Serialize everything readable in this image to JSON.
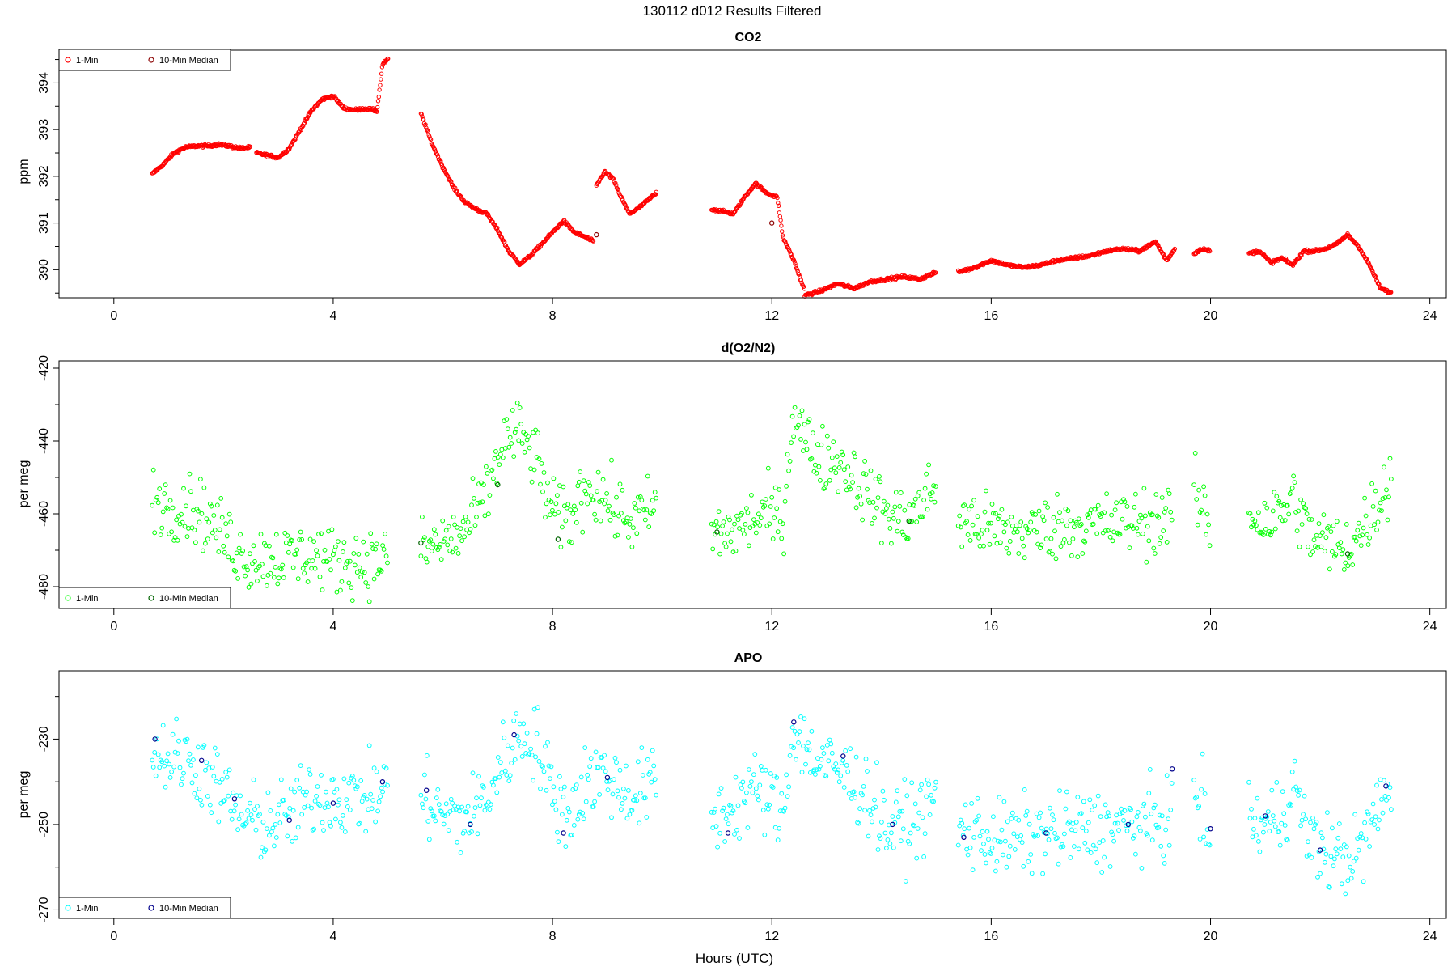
{
  "title": "130112   d012   Results Filtered",
  "xlabel": "Hours (UTC)",
  "chart_data": [
    {
      "type": "scatter",
      "title": "CO2",
      "ylabel": "ppm",
      "xlim": [
        -1,
        24.3
      ],
      "ylim": [
        389.4,
        394.7
      ],
      "xticks": [
        0,
        4,
        8,
        12,
        16,
        20,
        24
      ],
      "yticks": [
        390,
        391,
        392,
        393,
        394
      ],
      "legend": {
        "position": "top-left",
        "entries": [
          "1-Min",
          "10-Min Median"
        ]
      },
      "colors": {
        "one_min": "#ff0000",
        "median": "#8b0000"
      },
      "series": [
        {
          "name": "1-Min",
          "segments": [
            {
              "x": [
                0.7,
                0.9,
                1.1,
                1.3,
                1.5,
                1.7,
                1.9,
                2.1,
                2.3,
                2.5
              ],
              "y": [
                392.05,
                392.25,
                392.5,
                392.62,
                392.65,
                392.65,
                392.68,
                392.65,
                392.6,
                392.62
              ]
            },
            {
              "x": [
                2.6,
                2.8,
                3.0,
                3.2,
                3.4,
                3.6,
                3.8,
                4.0,
                4.2,
                4.4,
                4.6,
                4.8,
                4.9,
                5.0
              ],
              "y": [
                392.5,
                392.45,
                392.4,
                392.6,
                393.0,
                393.4,
                393.65,
                393.72,
                393.45,
                393.42,
                393.45,
                393.4,
                394.4,
                394.5
              ]
            },
            {
              "x": [
                5.6,
                5.8,
                6.0,
                6.2,
                6.4,
                6.6,
                6.8,
                7.0,
                7.2,
                7.4,
                7.6,
                7.8,
                8.0,
                8.2,
                8.4,
                8.6,
                8.75
              ],
              "y": [
                393.35,
                392.7,
                392.2,
                391.75,
                391.45,
                391.3,
                391.2,
                390.85,
                390.4,
                390.12,
                390.3,
                390.55,
                390.8,
                391.05,
                390.8,
                390.7,
                390.6
              ]
            },
            {
              "x": [
                8.8,
                8.95,
                9.1,
                9.25,
                9.4,
                9.55,
                9.9
              ],
              "y": [
                391.8,
                392.1,
                391.95,
                391.55,
                391.2,
                391.3,
                391.65
              ]
            },
            {
              "x": [
                10.9,
                11.1,
                11.3,
                11.5,
                11.7,
                11.9,
                12.1,
                12.2,
                12.4,
                12.6
              ],
              "y": [
                391.3,
                391.25,
                391.2,
                391.55,
                391.85,
                391.65,
                391.55,
                390.7,
                390.2,
                389.55
              ]
            },
            {
              "x": [
                12.6,
                12.9,
                13.2,
                13.5,
                13.8,
                14.1,
                14.4,
                14.7,
                15.0
              ],
              "y": [
                389.45,
                389.55,
                389.7,
                389.6,
                389.75,
                389.8,
                389.85,
                389.8,
                389.95
              ]
            },
            {
              "x": [
                15.4,
                15.7,
                16.0,
                16.3,
                16.6,
                16.9,
                17.2,
                17.5,
                17.8,
                18.1,
                18.4,
                18.7,
                19.0,
                19.2,
                19.35
              ],
              "y": [
                389.95,
                390.05,
                390.2,
                390.1,
                390.05,
                390.1,
                390.2,
                390.25,
                390.3,
                390.4,
                390.45,
                390.4,
                390.6,
                390.2,
                390.45
              ]
            },
            {
              "x": [
                19.7,
                19.85,
                20.0
              ],
              "y": [
                390.35,
                390.45,
                390.4
              ]
            },
            {
              "x": [
                20.7,
                20.9,
                21.1,
                21.3,
                21.5,
                21.7,
                21.9,
                22.1,
                22.3,
                22.5,
                22.7,
                22.9,
                23.1,
                23.3
              ],
              "y": [
                390.35,
                390.4,
                390.15,
                390.25,
                390.1,
                390.4,
                390.4,
                390.45,
                390.55,
                390.75,
                390.5,
                390.1,
                389.6,
                389.5
              ]
            }
          ]
        },
        {
          "name": "10-Min Median",
          "x": [
            8.8,
            12.0
          ],
          "y": [
            390.75,
            391.0
          ]
        }
      ]
    },
    {
      "type": "scatter",
      "title": "d(O2/N2)",
      "ylabel": "per meg",
      "xlim": [
        -1,
        24.3
      ],
      "ylim": [
        -486,
        -418
      ],
      "xticks": [
        0,
        4,
        8,
        12,
        16,
        20,
        24
      ],
      "yticks": [
        -480,
        -460,
        -440,
        -420
      ],
      "legend": {
        "position": "bottom-left",
        "entries": [
          "1-Min",
          "10-Min Median"
        ]
      },
      "colors": {
        "one_min": "#00ff00",
        "median": "#006400"
      },
      "series": [
        {
          "name": "1-Min",
          "segments": [
            {
              "x": [
                0.7,
                1.0,
                1.4,
                1.7,
                2.0,
                2.4,
                2.8,
                3.2,
                3.6,
                4.0,
                4.4,
                4.8,
                5.0
              ],
              "y": [
                -455,
                -458,
                -458,
                -461,
                -466,
                -472,
                -472,
                -472,
                -471,
                -473,
                -473,
                -473,
                -471
              ]
            },
            {
              "x": [
                5.6,
                6.0,
                6.4,
                6.8,
                7.1,
                7.4,
                7.7,
                8.0,
                8.3,
                8.6,
                8.9,
                9.2,
                9.5,
                9.9
              ],
              "y": [
                -470,
                -468,
                -465,
                -455,
                -440,
                -438,
                -445,
                -460,
                -462,
                -452,
                -455,
                -460,
                -462,
                -458
              ]
            },
            {
              "x": [
                10.9,
                11.3,
                11.6,
                11.9,
                12.2,
                12.4,
                12.6,
                12.9,
                13.2,
                13.5,
                13.8,
                14.1,
                14.4,
                14.7,
                15.0
              ],
              "y": [
                -465,
                -465,
                -462,
                -460,
                -462,
                -430,
                -440,
                -445,
                -445,
                -450,
                -455,
                -460,
                -462,
                -458,
                -452
              ]
            },
            {
              "x": [
                15.4,
                15.8,
                16.2,
                16.6,
                17.0,
                17.4,
                17.8,
                18.2,
                18.6,
                19.0,
                19.3
              ],
              "y": [
                -462,
                -463,
                -465,
                -465,
                -464,
                -463,
                -463,
                -463,
                -462,
                -462,
                -460
              ]
            },
            {
              "x": [
                19.7,
                19.9,
                20.0
              ],
              "y": [
                -455,
                -460,
                -465
              ]
            },
            {
              "x": [
                20.7,
                21.0,
                21.3,
                21.5,
                21.8,
                22.1,
                22.4,
                22.7,
                23.0,
                23.3
              ],
              "y": [
                -460,
                -462,
                -460,
                -455,
                -466,
                -468,
                -470,
                -466,
                -458,
                -450
              ]
            }
          ]
        },
        {
          "name": "10-Min Median",
          "x": [
            5.6,
            7.0,
            8.1,
            11.0,
            14.5,
            22.5
          ],
          "y": [
            -468,
            -452,
            -467,
            -465,
            -462,
            -471
          ]
        }
      ]
    },
    {
      "type": "scatter",
      "title": "APO",
      "ylabel": "per meg",
      "xlim": [
        -1,
        24.3
      ],
      "ylim": [
        -272,
        -214
      ],
      "xticks": [
        0,
        4,
        8,
        12,
        16,
        20,
        24
      ],
      "yticks": [
        -270,
        -250,
        -230
      ],
      "legend": {
        "position": "bottom-left",
        "entries": [
          "1-Min",
          "10-Min Median"
        ]
      },
      "colors": {
        "one_min": "#00ffff",
        "median": "#00008b"
      },
      "series": [
        {
          "name": "1-Min",
          "segments": [
            {
              "x": [
                0.7,
                1.0,
                1.4,
                1.7,
                2.0,
                2.4,
                2.8,
                3.2,
                3.6,
                4.0,
                4.4,
                4.8,
                5.0
              ],
              "y": [
                -233,
                -234,
                -235,
                -238,
                -243,
                -249,
                -250,
                -248,
                -244,
                -243,
                -244,
                -243,
                -240
              ]
            },
            {
              "x": [
                5.6,
                6.0,
                6.4,
                6.8,
                7.1,
                7.4,
                7.7,
                8.0,
                8.3,
                8.6,
                8.9,
                9.2,
                9.5,
                9.9
              ],
              "y": [
                -243,
                -248,
                -249,
                -244,
                -235,
                -229,
                -230,
                -243,
                -248,
                -240,
                -238,
                -241,
                -243,
                -240
              ]
            },
            {
              "x": [
                10.9,
                11.3,
                11.6,
                11.9,
                12.2,
                12.4,
                12.6,
                12.9,
                13.2,
                13.5,
                13.8,
                14.1,
                14.4,
                14.7,
                15.0
              ],
              "y": [
                -249,
                -246,
                -242,
                -243,
                -248,
                -226,
                -232,
                -236,
                -237,
                -240,
                -244,
                -251,
                -250,
                -248,
                -244
              ]
            },
            {
              "x": [
                15.4,
                15.8,
                16.2,
                16.6,
                17.0,
                17.4,
                17.8,
                18.2,
                18.6,
                19.0,
                19.3
              ],
              "y": [
                -251,
                -252,
                -254,
                -253,
                -252,
                -252,
                -251,
                -251,
                -250,
                -250,
                -248
              ]
            },
            {
              "x": [
                19.7,
                19.9,
                20.0
              ],
              "y": [
                -243,
                -248,
                -252
              ]
            },
            {
              "x": [
                20.7,
                21.0,
                21.3,
                21.5,
                21.8,
                22.1,
                22.4,
                22.7,
                23.0,
                23.3
              ],
              "y": [
                -250,
                -250,
                -248,
                -240,
                -254,
                -256,
                -258,
                -257,
                -248,
                -241
              ]
            }
          ]
        },
        {
          "name": "10-Min Median",
          "x": [
            0.75,
            1.6,
            2.2,
            3.2,
            4.0,
            4.9,
            5.7,
            6.5,
            7.3,
            8.2,
            9.0,
            11.2,
            12.4,
            13.3,
            14.2,
            15.5,
            17.0,
            18.5,
            19.3,
            20.0,
            21.0,
            22.0,
            23.2
          ],
          "y": [
            -230,
            -235,
            -244,
            -249,
            -245,
            -240,
            -242,
            -250,
            -229,
            -252,
            -239,
            -252,
            -226,
            -234,
            -250,
            -253,
            -252,
            -250,
            -237,
            -251,
            -248,
            -256,
            -241
          ]
        }
      ]
    }
  ]
}
